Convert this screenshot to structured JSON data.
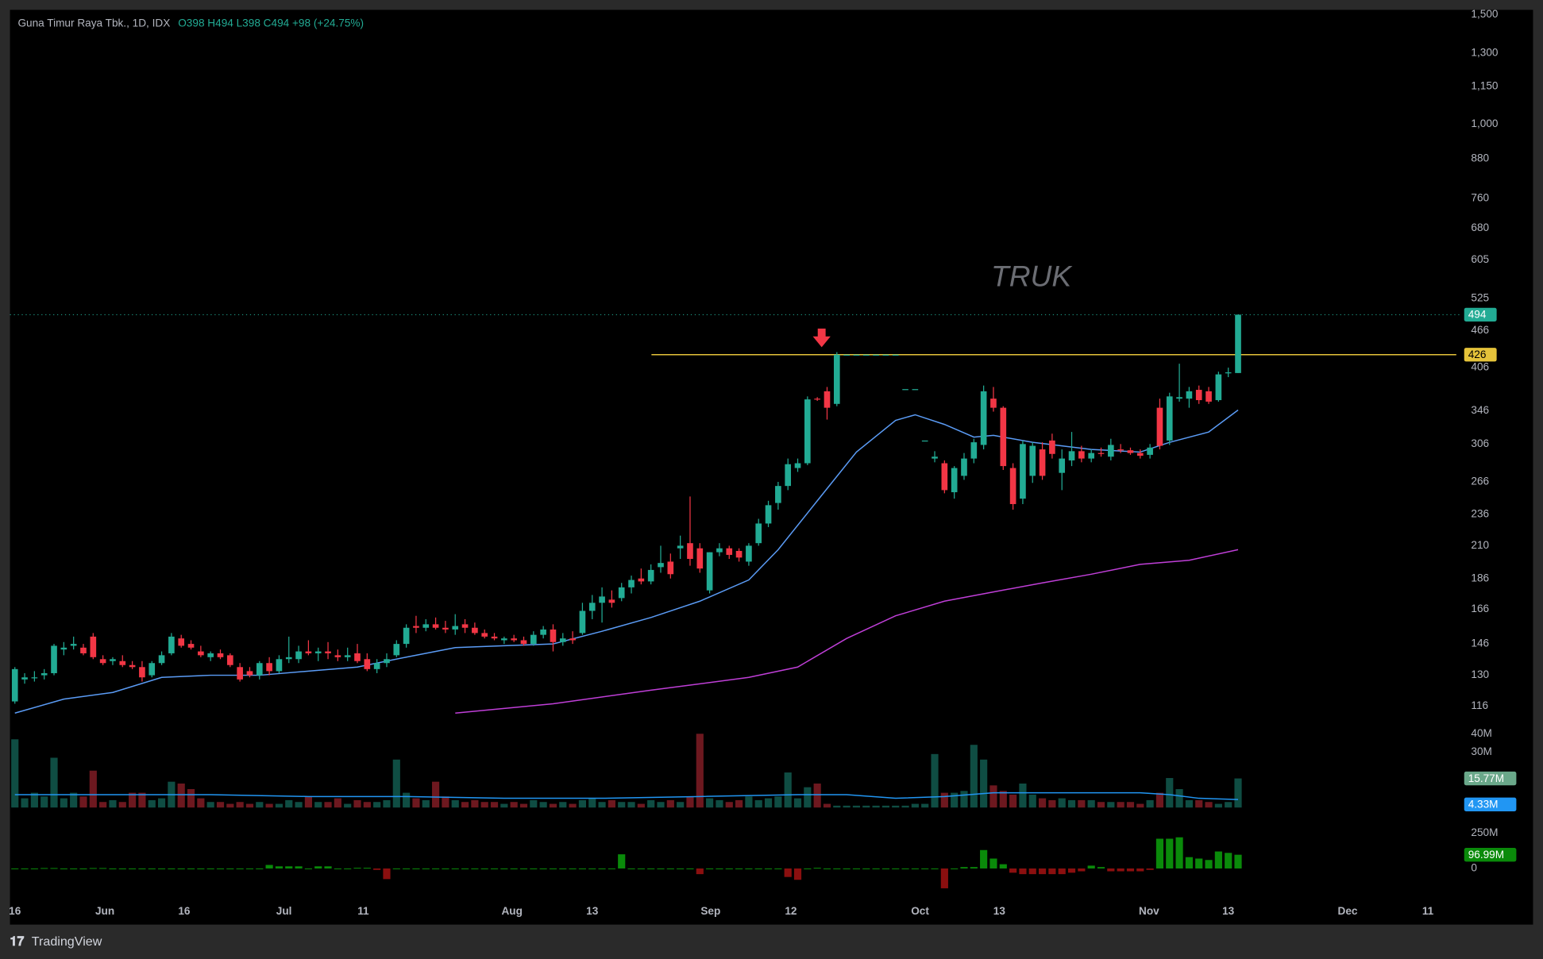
{
  "chart_data": [
    {
      "type": "candlestick",
      "title": "Guna Timur Raya Tbk., 1D, IDX",
      "subtitle": "O398 H494 L398 C494 +98 (+24.75%)",
      "watermark": "TRUK",
      "log_scale": true,
      "up_color": "#22ab94",
      "down_color": "#f23645",
      "ylim": [
        107,
        1527
      ],
      "yticks": [
        {
          "value": 1500,
          "label": "1,500"
        },
        {
          "value": 1300,
          "label": "1,300"
        },
        {
          "value": 1150,
          "label": "1,150"
        },
        {
          "value": 1000,
          "label": "1,000"
        },
        880,
        760,
        680,
        605,
        525,
        466,
        406,
        346,
        306,
        266,
        236,
        210,
        186,
        166,
        146,
        130,
        116
      ],
      "xlim": [
        0,
        147
      ],
      "xticks": [
        {
          "value": 0,
          "label": "16"
        },
        {
          "value": 9.2,
          "label": "Jun"
        },
        {
          "value": 17.3,
          "label": "16"
        },
        {
          "value": 27.5,
          "label": "Jul"
        },
        {
          "value": 35.6,
          "label": "11"
        },
        {
          "value": 50.8,
          "label": "Aug"
        },
        {
          "value": 59,
          "label": "13"
        },
        {
          "value": 71.1,
          "label": "Sep"
        },
        {
          "value": 79.3,
          "label": "12"
        },
        {
          "value": 92.5,
          "label": "Oct"
        },
        {
          "value": 100.6,
          "label": "13"
        },
        {
          "value": 115.9,
          "label": "Nov"
        },
        {
          "value": 124,
          "label": "13"
        },
        {
          "value": 136.2,
          "label": "Dec"
        },
        {
          "value": 144.4,
          "label": "11"
        }
      ],
      "ohlc": [
        [
          118,
          134,
          117,
          133
        ],
        [
          128,
          131,
          126,
          129
        ],
        [
          129,
          132,
          127,
          129
        ],
        [
          130,
          133,
          128,
          131
        ],
        [
          131,
          146,
          130,
          145
        ],
        [
          143,
          147,
          140,
          144
        ],
        [
          145,
          150,
          143,
          146
        ],
        [
          144,
          146,
          140,
          141
        ],
        [
          150,
          152,
          138,
          139
        ],
        [
          138,
          140,
          135,
          136
        ],
        [
          137,
          139,
          135,
          138
        ],
        [
          137,
          140,
          134,
          135
        ],
        [
          135,
          137,
          133,
          134
        ],
        [
          134,
          137,
          127,
          129
        ],
        [
          130,
          137,
          129,
          136
        ],
        [
          136,
          142,
          135,
          140
        ],
        [
          141,
          152,
          140,
          150
        ],
        [
          149,
          151,
          144,
          145
        ],
        [
          146,
          148,
          143,
          144
        ],
        [
          142,
          145,
          139,
          140
        ],
        [
          139,
          142,
          137,
          141
        ],
        [
          141,
          143,
          138,
          139
        ],
        [
          140,
          141,
          134,
          135
        ],
        [
          134,
          136,
          127,
          128
        ],
        [
          132,
          134,
          129,
          130
        ],
        [
          130,
          137,
          128,
          136
        ],
        [
          136,
          139,
          130,
          132
        ],
        [
          132,
          140,
          131,
          138
        ],
        [
          138,
          150,
          136,
          139
        ],
        [
          138,
          145,
          136,
          142
        ],
        [
          142,
          148,
          140,
          141
        ],
        [
          141,
          144,
          137,
          142
        ],
        [
          142,
          147,
          138,
          141
        ],
        [
          140,
          143,
          137,
          139
        ],
        [
          139,
          144,
          137,
          140
        ],
        [
          141,
          146,
          136,
          137
        ],
        [
          138,
          141,
          132,
          133
        ],
        [
          133,
          138,
          131,
          136
        ],
        [
          136,
          141,
          134,
          138
        ],
        [
          140,
          148,
          139,
          146
        ],
        [
          146,
          157,
          144,
          155
        ],
        [
          156,
          162,
          152,
          155
        ],
        [
          155,
          160,
          153,
          157
        ],
        [
          157,
          161,
          154,
          155
        ],
        [
          155,
          159,
          152,
          154
        ],
        [
          154,
          163,
          151,
          156
        ],
        [
          157,
          160,
          152,
          155
        ],
        [
          155,
          158,
          151,
          152
        ],
        [
          152,
          154,
          149,
          150
        ],
        [
          150,
          152,
          148,
          149
        ],
        [
          148,
          150,
          146,
          149
        ],
        [
          149,
          151,
          147,
          148
        ],
        [
          148,
          150,
          145,
          146
        ],
        [
          146,
          153,
          145,
          151
        ],
        [
          151,
          156,
          149,
          154
        ],
        [
          154,
          157,
          142,
          147
        ],
        [
          147,
          152,
          145,
          149
        ],
        [
          149,
          153,
          146,
          148
        ],
        [
          152,
          170,
          151,
          165
        ],
        [
          165,
          175,
          160,
          170
        ],
        [
          170,
          180,
          158,
          174
        ],
        [
          172,
          178,
          167,
          170
        ],
        [
          173,
          183,
          171,
          180
        ],
        [
          180,
          188,
          176,
          185
        ],
        [
          186,
          193,
          182,
          184
        ],
        [
          184,
          196,
          182,
          192
        ],
        [
          194,
          210,
          190,
          197
        ],
        [
          198,
          204,
          186,
          189
        ],
        [
          208,
          218,
          200,
          210
        ],
        [
          212,
          252,
          195,
          200
        ],
        [
          208,
          212,
          190,
          193
        ],
        [
          178,
          205,
          176,
          205
        ],
        [
          205,
          212,
          202,
          208
        ],
        [
          208,
          210,
          200,
          203
        ],
        [
          206,
          208,
          198,
          201
        ],
        [
          198,
          212,
          195,
          210
        ],
        [
          212,
          232,
          210,
          228
        ],
        [
          228,
          248,
          225,
          244
        ],
        [
          246,
          266,
          240,
          262
        ],
        [
          262,
          290,
          258,
          284
        ],
        [
          280,
          290,
          276,
          285
        ],
        [
          285,
          365,
          283,
          361
        ],
        [
          362,
          364,
          359,
          361
        ],
        [
          372,
          378,
          335,
          350
        ],
        [
          355,
          430,
          352,
          426
        ],
        [
          426,
          426,
          426,
          426
        ],
        [
          426,
          426,
          426,
          426
        ],
        [
          426,
          426,
          426,
          426
        ],
        [
          426,
          426,
          426,
          426
        ],
        [
          426,
          426,
          426,
          426
        ],
        [
          426,
          426,
          426,
          426
        ],
        [
          375,
          375,
          375,
          375
        ],
        [
          375,
          375,
          375,
          375
        ],
        [
          310,
          310,
          310,
          310
        ],
        [
          290,
          298,
          286,
          292
        ],
        [
          285,
          288,
          255,
          258
        ],
        [
          256,
          282,
          250,
          280
        ],
        [
          272,
          296,
          268,
          290
        ],
        [
          290,
          312,
          285,
          308
        ],
        [
          305,
          380,
          300,
          372
        ],
        [
          362,
          378,
          345,
          350
        ],
        [
          350,
          352,
          278,
          282
        ],
        [
          280,
          285,
          240,
          245
        ],
        [
          250,
          310,
          245,
          306
        ],
        [
          272,
          308,
          265,
          304
        ],
        [
          300,
          308,
          268,
          272
        ],
        [
          310,
          318,
          290,
          295
        ],
        [
          275,
          300,
          258,
          290
        ],
        [
          288,
          320,
          282,
          298
        ],
        [
          298,
          304,
          286,
          290
        ],
        [
          290,
          300,
          286,
          296
        ],
        [
          296,
          302,
          292,
          295
        ],
        [
          292,
          312,
          288,
          305
        ],
        [
          300,
          306,
          296,
          299
        ],
        [
          299,
          302,
          294,
          296
        ],
        [
          296,
          300,
          290,
          293
        ],
        [
          294,
          306,
          290,
          302
        ],
        [
          350,
          362,
          300,
          304
        ],
        [
          310,
          370,
          305,
          365
        ],
        [
          362,
          412,
          358,
          364
        ],
        [
          362,
          378,
          350,
          372
        ],
        [
          374,
          380,
          355,
          360
        ],
        [
          372,
          378,
          355,
          358
        ],
        [
          360,
          400,
          358,
          396
        ],
        [
          398,
          406,
          392,
          399
        ],
        [
          398,
          494,
          398,
          494
        ]
      ],
      "lines": [
        {
          "color": "#5b9cf6",
          "x": [
            0,
            5,
            10,
            15,
            20,
            25,
            30,
            35,
            40,
            45,
            50,
            55,
            60,
            65,
            70,
            75,
            78,
            82,
            86,
            90,
            92,
            95,
            98,
            100,
            104,
            110,
            115,
            118,
            122,
            125
          ],
          "values": [
            113,
            119,
            122,
            129,
            130,
            130,
            132,
            134,
            139,
            144,
            145,
            146,
            153,
            161,
            171,
            185,
            207,
            248,
            297,
            334,
            341,
            329,
            314,
            316,
            308,
            300,
            297,
            308,
            320,
            347
          ]
        },
        {
          "color": "#c03fd8",
          "x": [
            45,
            55,
            65,
            75,
            80,
            85,
            90,
            95,
            100,
            105,
            110,
            115,
            120,
            125
          ],
          "values": [
            113,
            117,
            123,
            129,
            134,
            149,
            162,
            171,
            177,
            183,
            189,
            196,
            199,
            207
          ]
        }
      ],
      "hline": {
        "value": 426,
        "label": "426",
        "color": "#e5c33a"
      },
      "last_label": {
        "value": 494,
        "label": "494"
      }
    },
    {
      "type": "bar",
      "ylim": [
        0,
        43.2
      ],
      "yticks": [
        {
          "value": 40,
          "label": "40M"
        },
        {
          "value": 30,
          "label": "30M"
        }
      ],
      "values": [
        37,
        5,
        8,
        6,
        27,
        5,
        8,
        6,
        20,
        3,
        4,
        3,
        8,
        8,
        4,
        5,
        14,
        13,
        10,
        5,
        3,
        3,
        2,
        3,
        2,
        3,
        2,
        2,
        4,
        3,
        6,
        3,
        3,
        5,
        2,
        4,
        3,
        3,
        4,
        26,
        8,
        5,
        4,
        14,
        6,
        4,
        3,
        4,
        3,
        3,
        2,
        3,
        2,
        4,
        3,
        2,
        3,
        2,
        4,
        5,
        3,
        4,
        3,
        3,
        2,
        4,
        3,
        4,
        3,
        6,
        40,
        5,
        4,
        3,
        4,
        6,
        4,
        5,
        6,
        19,
        5,
        11,
        13,
        2,
        1,
        1,
        1,
        1,
        1,
        1,
        1,
        1,
        2,
        2,
        29,
        8,
        8,
        9,
        34,
        26,
        12,
        9,
        7,
        13,
        7,
        5,
        4,
        5,
        4,
        4,
        4,
        3,
        3,
        3,
        3,
        2,
        4,
        8,
        16,
        10,
        4,
        4,
        3,
        2,
        3,
        15.77
      ],
      "last_label": {
        "value": 15.77,
        "label": "15.77M"
      },
      "lines": [
        {
          "color": "#2196f3",
          "x": [
            0,
            10,
            20,
            30,
            40,
            50,
            60,
            70,
            80,
            85,
            90,
            95,
            100,
            110,
            115,
            118,
            121,
            125
          ],
          "values": [
            7,
            7,
            7,
            6,
            6,
            5,
            5,
            6,
            7,
            7,
            5,
            6,
            8,
            8,
            8,
            7,
            5,
            4.33
          ],
          "last_label": {
            "value": 4.33,
            "label": "4.33M"
          }
        }
      ]
    },
    {
      "type": "bar",
      "ylim": [
        -153,
        333
      ],
      "yticks": [
        {
          "value": 250,
          "label": "250M"
        },
        0
      ],
      "up_color": "#0a8a0a",
      "down_color": "#8b0f0f",
      "values": [
        0,
        0,
        0,
        3,
        3,
        0,
        0,
        0,
        3,
        3,
        0,
        0,
        0,
        0,
        0,
        0,
        0,
        0,
        0,
        0,
        0,
        0,
        0,
        0,
        0,
        0,
        25,
        15,
        15,
        15,
        0,
        15,
        15,
        0,
        0,
        5,
        5,
        -10,
        -75,
        0,
        0,
        0,
        0,
        0,
        0,
        0,
        0,
        0,
        0,
        0,
        0,
        0,
        0,
        0,
        0,
        0,
        0,
        0,
        0,
        0,
        0,
        0,
        100,
        0,
        0,
        0,
        0,
        0,
        0,
        0,
        -40,
        0,
        0,
        0,
        0,
        0,
        0,
        0,
        0,
        -60,
        -80,
        0,
        5,
        0,
        0,
        0,
        0,
        0,
        0,
        0,
        0,
        0,
        0,
        0,
        0,
        -140,
        0,
        10,
        10,
        130,
        70,
        30,
        -30,
        -40,
        -40,
        -40,
        -40,
        -40,
        -30,
        -20,
        20,
        10,
        -20,
        -20,
        -20,
        -20,
        -10,
        210,
        210,
        220,
        80,
        70,
        60,
        120,
        110,
        96.99
      ],
      "last_label": {
        "value": 96.99,
        "label": "96.99M"
      }
    }
  ],
  "footer": "TradingView"
}
